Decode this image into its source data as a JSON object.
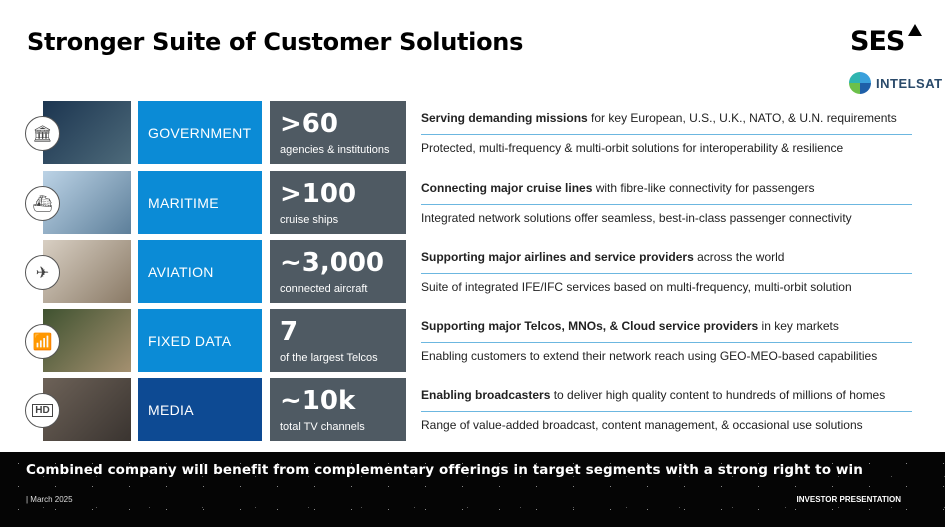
{
  "title": "Stronger Suite of Customer Solutions",
  "logos": {
    "ses": "SES",
    "intelsat": "INTELSAT"
  },
  "rows": [
    {
      "label": "GOVERNMENT",
      "stat": ">60",
      "stat_sub": "agencies & institutions",
      "line1_bold": "Serving demanding missions",
      "line1_rest": " for key European, U.S., U.K., NATO, & U.N. requirements",
      "line2": "Protected, multi-frequency & multi-orbit solutions for interoperability & resilience",
      "icon": "government-building-icon"
    },
    {
      "label": "MARITIME",
      "stat": ">100",
      "stat_sub": "cruise ships",
      "line1_bold": "Connecting major cruise lines",
      "line1_rest": " with fibre-like connectivity for passengers",
      "line2": "Integrated network solutions offer seamless, best-in-class passenger connectivity",
      "icon": "ship-icon"
    },
    {
      "label": "AVIATION",
      "stat": "~3,000",
      "stat_sub": "connected aircraft",
      "line1_bold": "Supporting major airlines and service providers",
      "line1_rest": " across the world",
      "line2": "Suite of integrated IFE/IFC services based on multi-frequency, multi-orbit solution",
      "icon": "airplane-icon"
    },
    {
      "label": "FIXED DATA",
      "stat": "7",
      "stat_sub": "of the largest Telcos",
      "line1_bold": "Supporting major Telcos, MNOs, & Cloud service providers",
      "line1_rest": " in key markets",
      "line2": "Enabling customers to extend their network reach using GEO-MEO-based capabilities",
      "icon": "cell-tower-icon"
    },
    {
      "label": "MEDIA",
      "stat": "~10k",
      "stat_sub": "total TV channels",
      "line1_bold": "Enabling broadcasters",
      "line1_rest": " to deliver high quality content to hundreds of millions of homes",
      "line2": "Range of value-added broadcast, content management, & occasional use solutions",
      "icon": "hd-tv-icon"
    }
  ],
  "icon_glyphs": [
    "🏛",
    "⛴",
    "✈",
    "📶",
    "HD"
  ],
  "photo_colors": [
    [
      "#1c3550",
      "#4d6a7a"
    ],
    [
      "#bcd3e6",
      "#5d7f9a"
    ],
    [
      "#d8cfc3",
      "#8a7a66"
    ],
    [
      "#3f5230",
      "#a49070"
    ],
    [
      "#6d6258",
      "#3a3430"
    ]
  ],
  "footer": {
    "message": "Combined company will benefit from complementary offerings in target segments with a strong right to win",
    "date": "| March 2025",
    "label": "INVESTOR PRESENTATION"
  }
}
